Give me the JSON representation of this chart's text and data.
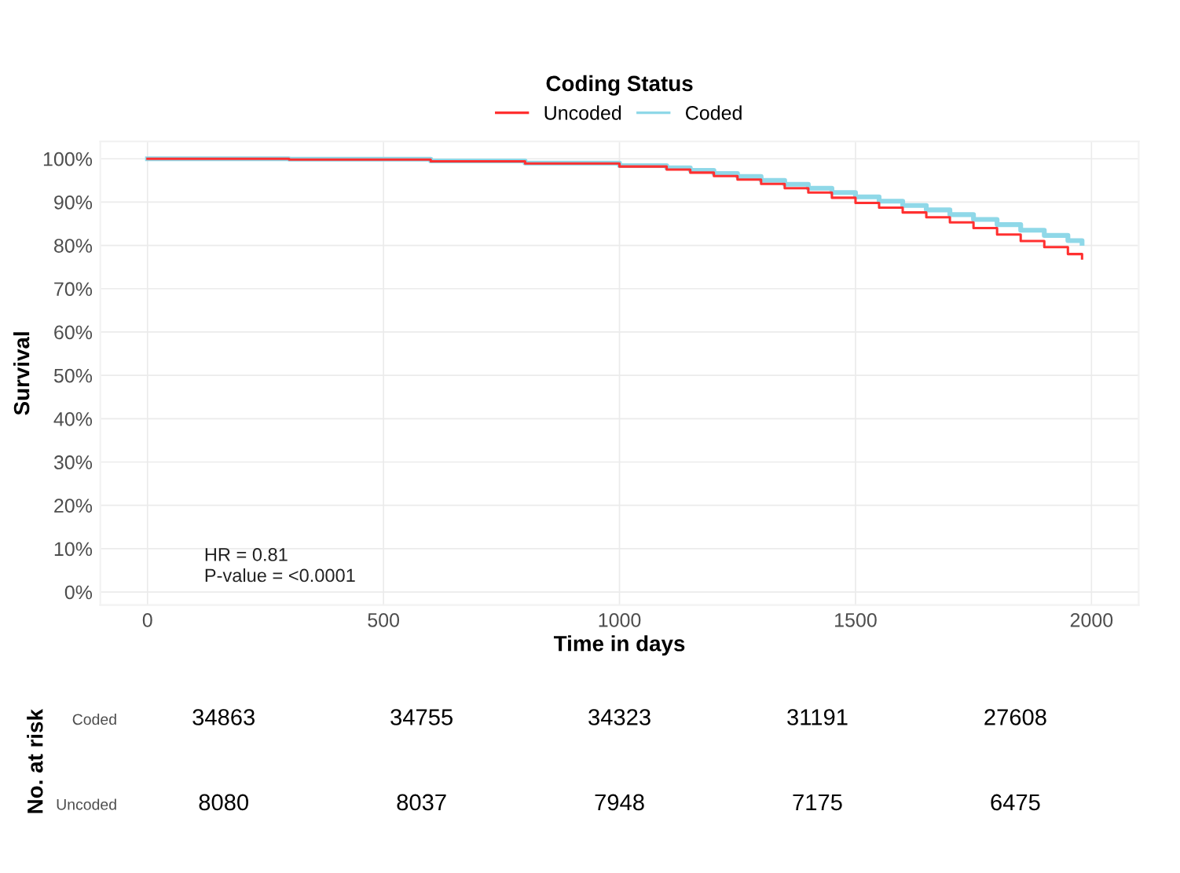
{
  "chart_data": [
    {
      "type": "step",
      "xlabel": "Time in days",
      "ylabel": "Survival",
      "legend_title": "Coding Status",
      "legend": "top",
      "grid": true,
      "xlim": [
        -100,
        2100
      ],
      "xticks": [
        0,
        500,
        1000,
        1500,
        2000
      ],
      "ylim": [
        -3,
        104
      ],
      "yticks": [
        {
          "value": 0,
          "label": "0%"
        },
        {
          "value": 10,
          "label": "10%"
        },
        {
          "value": 20,
          "label": "20%"
        },
        {
          "value": 30,
          "label": "30%"
        },
        {
          "value": 40,
          "label": "40%"
        },
        {
          "value": 50,
          "label": "50%"
        },
        {
          "value": 60,
          "label": "60%"
        },
        {
          "value": 70,
          "label": "70%"
        },
        {
          "value": 80,
          "label": "80%"
        },
        {
          "value": 90,
          "label": "90%"
        },
        {
          "value": 100,
          "label": "100%"
        }
      ],
      "x": [
        0,
        300,
        600,
        800,
        1000,
        1100,
        1150,
        1200,
        1250,
        1300,
        1350,
        1400,
        1450,
        1500,
        1550,
        1600,
        1650,
        1700,
        1750,
        1800,
        1850,
        1900,
        1950,
        1980
      ],
      "series": [
        {
          "name": "Uncoded",
          "color": "#ff3030",
          "values": [
            100,
            99.8,
            99.4,
            98.9,
            98.2,
            97.5,
            96.8,
            96,
            95.2,
            94.2,
            93.2,
            92.2,
            91,
            89.8,
            88.7,
            87.6,
            86.5,
            85.3,
            84,
            82.5,
            81,
            79.6,
            78,
            77
          ]
        },
        {
          "name": "Coded",
          "color": "#8fd8e8",
          "values": [
            100,
            99.9,
            99.5,
            99,
            98.4,
            97.9,
            97.3,
            96.6,
            95.9,
            95,
            94.1,
            93.2,
            92.2,
            91.2,
            90.2,
            89.2,
            88.2,
            87.1,
            86,
            84.8,
            83.5,
            82.3,
            81.1,
            80.5
          ]
        }
      ],
      "annotations": [
        "HR = 0.81",
        "P-value = <0.0001"
      ]
    },
    {
      "type": "heatmap",
      "ylabel": "No. at risk",
      "categories": [
        null,
        null,
        null,
        null,
        null
      ],
      "y_categories": [
        "Coded",
        "Uncoded"
      ],
      "data_labels": true,
      "cells": [
        [
          34863,
          34755,
          34323,
          31191,
          27608
        ],
        [
          8080,
          8037,
          7948,
          7175,
          6475
        ]
      ]
    }
  ]
}
